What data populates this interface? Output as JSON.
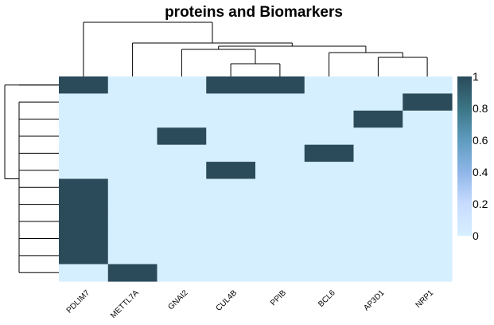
{
  "chart_data": {
    "type": "heatmap",
    "title": "proteins and Biomarkers",
    "columns": [
      "PDLIM7",
      "METTL7A",
      "GNAI2",
      "CUL4B",
      "PPIB",
      "BCL6",
      "AP3D1",
      "NRP1"
    ],
    "row_count": 12,
    "matrix": [
      [
        1,
        0,
        0,
        1,
        1,
        0,
        0,
        0
      ],
      [
        0,
        0,
        0,
        0,
        0,
        0,
        0,
        1
      ],
      [
        0,
        0,
        0,
        0,
        0,
        0,
        1,
        0
      ],
      [
        0,
        0,
        1,
        0,
        0,
        0,
        0,
        0
      ],
      [
        0,
        0,
        0,
        0,
        0,
        1,
        0,
        0
      ],
      [
        0,
        0,
        0,
        1,
        0,
        0,
        0,
        0
      ],
      [
        1,
        0,
        0,
        0,
        0,
        0,
        0,
        0
      ],
      [
        1,
        0,
        0,
        0,
        0,
        0,
        0,
        0
      ],
      [
        1,
        0,
        0,
        0,
        0,
        0,
        0,
        0
      ],
      [
        1,
        0,
        0,
        0,
        0,
        0,
        0,
        0
      ],
      [
        1,
        0,
        0,
        0,
        0,
        0,
        0,
        0
      ],
      [
        0,
        1,
        0,
        0,
        0,
        0,
        0,
        0
      ]
    ],
    "legend": {
      "ticks": [
        "0",
        "0.2",
        "0.4",
        "0.6",
        "0.8",
        "1"
      ],
      "colors": [
        "#d6efff",
        "#c8dcff",
        "#8fb6e8",
        "#5f9cbf",
        "#3b7585",
        "#2b4a5a"
      ]
    },
    "colors": {
      "low": "#d6efff",
      "high": "#2b4a5a"
    },
    "dendrograms": {
      "columns": true,
      "rows": true
    }
  }
}
